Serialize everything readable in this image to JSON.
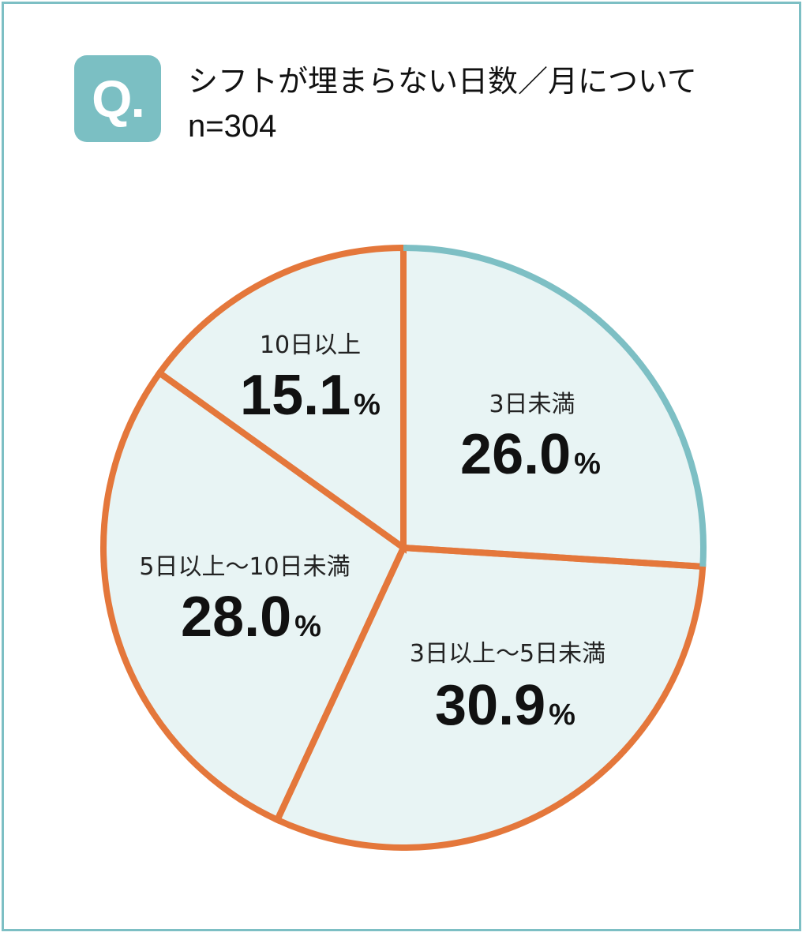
{
  "header": {
    "badge": "Q.",
    "title": "シフトが埋まらない日数／月について",
    "n_label": "n=304"
  },
  "colors": {
    "frame": "#7dbfc4",
    "badge": "#7bbfc3",
    "slice_fill": "#e8f4f4",
    "highlight": "#e4773b",
    "divider": "#7bbfc3"
  },
  "chart_data": {
    "type": "pie",
    "categories": [
      "3日未満",
      "3日以上～5日未満",
      "5日以上～10日未満",
      "10日以上"
    ],
    "values": [
      26.0,
      30.9,
      28.0,
      15.1
    ],
    "value_labels": [
      "26.0",
      "30.9",
      "28.0",
      "15.1"
    ],
    "unit": "%",
    "start": "12 o'clock, clockwise",
    "highlighted_category": "3日以上～5日未満"
  }
}
